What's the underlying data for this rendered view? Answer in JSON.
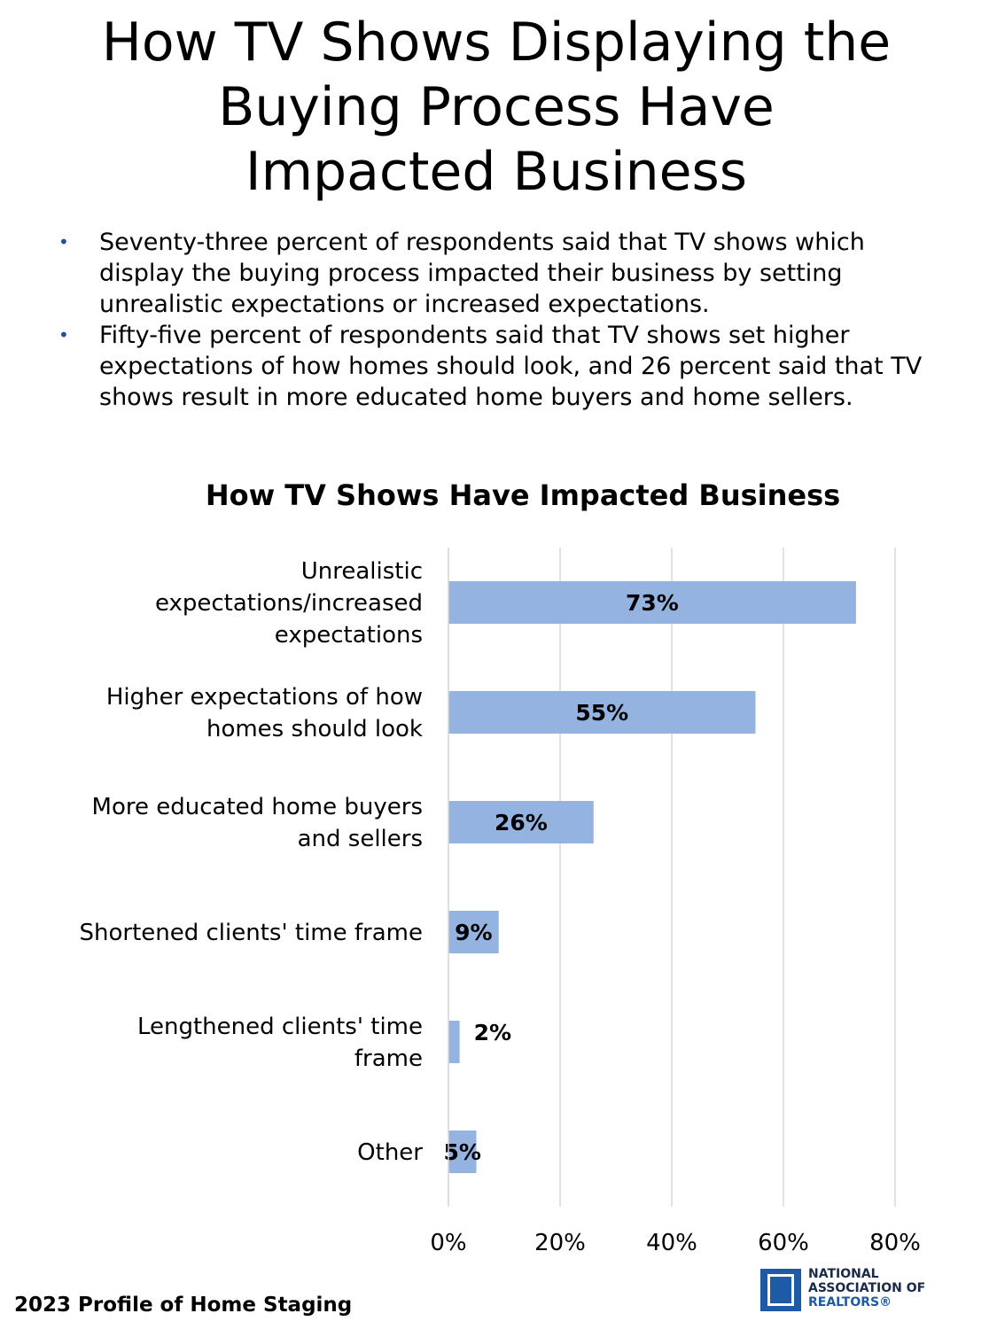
{
  "page": {
    "title_lines": [
      "How TV Shows Displaying the",
      "Buying Process Have",
      "Impacted Business"
    ],
    "bullets": [
      "Seventy-three percent of respondents said that TV shows which display the buying process impacted their business by setting unrealistic expectations or increased expectations.",
      "Fifty-five percent of respondents said that TV shows set higher expectations of how homes should look, and 26 percent said that TV shows result in more educated home buyers and home sellers."
    ],
    "bullet_symbol": "•",
    "footer": "2023 Profile of Home Staging",
    "logo": {
      "lines": [
        "NATIONAL",
        "ASSOCIATION OF",
        "REALTORS®"
      ]
    }
  },
  "chart_data": {
    "type": "bar",
    "orientation": "horizontal",
    "title": "How TV Shows Have Impacted Business",
    "categories": [
      [
        "Unrealistic",
        "expectations/increased",
        "expectations"
      ],
      [
        "Higher expectations of how",
        "homes should look"
      ],
      [
        "More educated home buyers",
        "and sellers"
      ],
      [
        "Shortened clients' time frame"
      ],
      [
        "Lengthened clients' time",
        "frame"
      ],
      [
        "Other"
      ]
    ],
    "values": [
      73,
      55,
      26,
      9,
      2,
      5
    ],
    "data_labels": [
      "73%",
      "55%",
      "26%",
      "9%",
      "2%",
      "5%"
    ],
    "xlim": [
      0,
      80
    ],
    "xticks": [
      0,
      20,
      40,
      60,
      80
    ],
    "xtick_labels": [
      "0%",
      "20%",
      "40%",
      "60%",
      "80%"
    ],
    "grid": true,
    "legend": "none",
    "bar_color": "#95b3e0",
    "grid_color": "#d9d9d9"
  }
}
